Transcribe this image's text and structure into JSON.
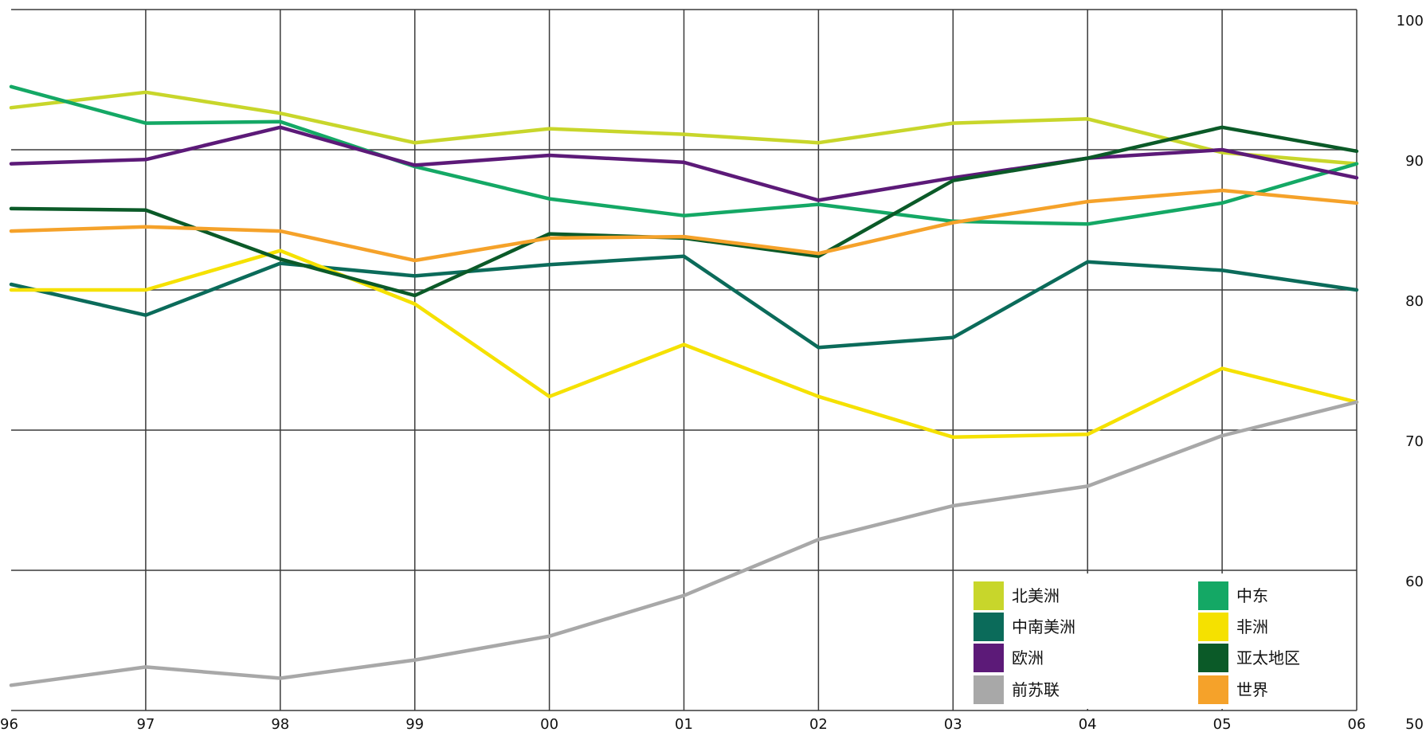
{
  "chart_data": {
    "type": "line",
    "title": "",
    "xlabel": "",
    "ylabel": "",
    "categories": [
      "96",
      "97",
      "98",
      "99",
      "00",
      "01",
      "02",
      "03",
      "04",
      "05",
      "06"
    ],
    "x_tick_labels": [
      "96",
      "97",
      "98",
      "99",
      "00",
      "01",
      "02",
      "03",
      "04",
      "05",
      "06"
    ],
    "ylim": [
      50,
      100
    ],
    "y_ticks": [
      50,
      60,
      70,
      80,
      90,
      100
    ],
    "y_tick_labels": [
      "50",
      "60",
      "70",
      "80",
      "90",
      "100"
    ],
    "grid": true,
    "legend_position": "bottom-right",
    "series": [
      {
        "name": "北美洲",
        "color": "#c8d62b",
        "values": [
          93.0,
          94.1,
          92.6,
          90.5,
          91.5,
          91.1,
          90.5,
          91.9,
          92.2,
          89.8,
          89.0
        ]
      },
      {
        "name": "中东",
        "color": "#14a865",
        "values": [
          94.5,
          91.9,
          92.0,
          88.8,
          86.5,
          85.3,
          86.1,
          84.9,
          84.7,
          86.2,
          89.0
        ]
      },
      {
        "name": "中南美洲",
        "color": "#0b6b5a",
        "values": [
          80.4,
          78.2,
          81.9,
          81.0,
          81.8,
          82.4,
          75.9,
          76.6,
          82.0,
          81.4,
          80.0
        ]
      },
      {
        "name": "非洲",
        "color": "#f5e100",
        "values": [
          80.0,
          80.0,
          82.8,
          79.0,
          72.4,
          76.1,
          72.4,
          69.5,
          69.7,
          74.4,
          72.0
        ]
      },
      {
        "name": "欧洲",
        "color": "#5c1a78",
        "values": [
          89.0,
          89.3,
          91.6,
          88.9,
          89.6,
          89.1,
          86.4,
          88.0,
          89.4,
          90.0,
          88.0
        ]
      },
      {
        "name": "亚太地区",
        "color": "#0b5a28",
        "values": [
          85.8,
          85.7,
          82.2,
          79.6,
          84.0,
          83.7,
          82.4,
          87.8,
          89.4,
          91.6,
          89.9
        ]
      },
      {
        "name": "前苏联",
        "color": "#a8a8a8",
        "values": [
          51.8,
          53.1,
          52.3,
          53.6,
          55.3,
          58.2,
          62.2,
          64.6,
          66.0,
          69.6,
          72.0
        ]
      },
      {
        "name": "世界",
        "color": "#f5a22a",
        "values": [
          84.2,
          84.5,
          84.2,
          82.1,
          83.7,
          83.8,
          82.6,
          84.8,
          86.3,
          87.1,
          86.2
        ]
      }
    ]
  },
  "legend": {
    "items": [
      {
        "label": "北美洲",
        "color": "#c8d62b"
      },
      {
        "label": "中东",
        "color": "#14a865"
      },
      {
        "label": "中南美洲",
        "color": "#0b6b5a"
      },
      {
        "label": "非洲",
        "color": "#f5e100"
      },
      {
        "label": "欧洲",
        "color": "#5c1a78"
      },
      {
        "label": "亚太地区",
        "color": "#0b5a28"
      },
      {
        "label": "前苏联",
        "color": "#a8a8a8"
      },
      {
        "label": "世界",
        "color": "#f5a22a"
      }
    ]
  }
}
